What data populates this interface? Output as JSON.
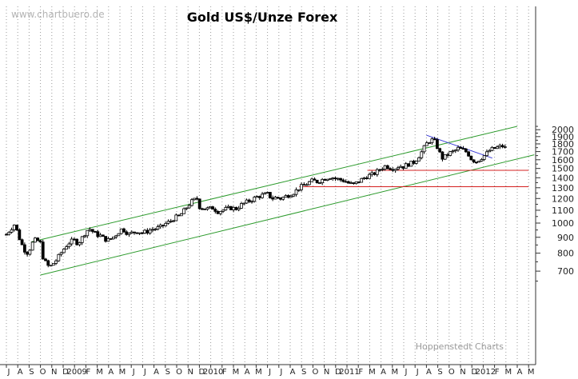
{
  "watermark": "www.chartbuero.de",
  "title": "Gold US$/Unze Forex",
  "footer": "Hoppenstedt Charts",
  "chart_data": {
    "type": "candlestick",
    "title": "Gold US$/Unze Forex",
    "y_scale": "log",
    "ylim": [
      650,
      2100
    ],
    "y_ticks": [
      700,
      800,
      900,
      1000,
      1100,
      1200,
      1300,
      1400,
      1500,
      1600,
      1700,
      1800,
      1900,
      2000
    ],
    "x_ticks": [
      {
        "label": "J",
        "month": 0
      },
      {
        "label": "A",
        "month": 1
      },
      {
        "label": "S",
        "month": 2
      },
      {
        "label": "O",
        "month": 3
      },
      {
        "label": "N",
        "month": 4
      },
      {
        "label": "D",
        "month": 5
      },
      {
        "label": "2009",
        "month": 6
      },
      {
        "label": "F",
        "month": 7
      },
      {
        "label": "M",
        "month": 8
      },
      {
        "label": "A",
        "month": 9
      },
      {
        "label": "M",
        "month": 10
      },
      {
        "label": "J",
        "month": 11
      },
      {
        "label": "J",
        "month": 12
      },
      {
        "label": "A",
        "month": 13
      },
      {
        "label": "S",
        "month": 14
      },
      {
        "label": "O",
        "month": 15
      },
      {
        "label": "N",
        "month": 16
      },
      {
        "label": "D",
        "month": 17
      },
      {
        "label": "2010",
        "month": 18
      },
      {
        "label": "F",
        "month": 19
      },
      {
        "label": "M",
        "month": 20
      },
      {
        "label": "A",
        "month": 21
      },
      {
        "label": "M",
        "month": 22
      },
      {
        "label": "J",
        "month": 23
      },
      {
        "label": "J",
        "month": 24
      },
      {
        "label": "A",
        "month": 25
      },
      {
        "label": "S",
        "month": 26
      },
      {
        "label": "O",
        "month": 27
      },
      {
        "label": "N",
        "month": 28
      },
      {
        "label": "D",
        "month": 29
      },
      {
        "label": "2011",
        "month": 30
      },
      {
        "label": "F",
        "month": 31
      },
      {
        "label": "M",
        "month": 32
      },
      {
        "label": "A",
        "month": 33
      },
      {
        "label": "M",
        "month": 34
      },
      {
        "label": "J",
        "month": 35
      },
      {
        "label": "J",
        "month": 36
      },
      {
        "label": "A",
        "month": 37
      },
      {
        "label": "S",
        "month": 38
      },
      {
        "label": "O",
        "month": 39
      },
      {
        "label": "N",
        "month": 40
      },
      {
        "label": "D",
        "month": 41
      },
      {
        "label": "2012",
        "month": 42
      },
      {
        "label": "F",
        "month": 43
      },
      {
        "label": "M",
        "month": 44
      },
      {
        "label": "A",
        "month": 45
      },
      {
        "label": "M",
        "month": 46
      }
    ],
    "price_path": [
      [
        0.0,
        920
      ],
      [
        0.4,
        960
      ],
      [
        0.7,
        990
      ],
      [
        1.0,
        930
      ],
      [
        1.2,
        880
      ],
      [
        1.5,
        830
      ],
      [
        1.8,
        800
      ],
      [
        2.1,
        830
      ],
      [
        2.4,
        880
      ],
      [
        2.7,
        880
      ],
      [
        3.0,
        860
      ],
      [
        3.2,
        780
      ],
      [
        3.5,
        740
      ],
      [
        3.8,
        720
      ],
      [
        4.1,
        740
      ],
      [
        4.4,
        760
      ],
      [
        4.8,
        800
      ],
      [
        5.2,
        840
      ],
      [
        5.6,
        870
      ],
      [
        6.0,
        880
      ],
      [
        6.3,
        860
      ],
      [
        6.7,
        900
      ],
      [
        7.0,
        940
      ],
      [
        7.3,
        960
      ],
      [
        7.6,
        940
      ],
      [
        7.9,
        920
      ],
      [
        8.3,
        910
      ],
      [
        8.6,
        890
      ],
      [
        9.0,
        880
      ],
      [
        9.4,
        900
      ],
      [
        9.8,
        930
      ],
      [
        10.2,
        960
      ],
      [
        10.5,
        940
      ],
      [
        10.8,
        920
      ],
      [
        11.2,
        935
      ],
      [
        11.6,
        940
      ],
      [
        12.0,
        930
      ],
      [
        12.4,
        940
      ],
      [
        12.8,
        955
      ],
      [
        13.2,
        960
      ],
      [
        13.6,
        970
      ],
      [
        14.0,
        995
      ],
      [
        14.4,
        1010
      ],
      [
        14.8,
        1040
      ],
      [
        15.2,
        1050
      ],
      [
        15.6,
        1090
      ],
      [
        16.0,
        1140
      ],
      [
        16.4,
        1180
      ],
      [
        16.8,
        1200
      ],
      [
        17.0,
        1130
      ],
      [
        17.4,
        1115
      ],
      [
        17.8,
        1110
      ],
      [
        18.2,
        1120
      ],
      [
        18.6,
        1090
      ],
      [
        19.0,
        1100
      ],
      [
        19.4,
        1110
      ],
      [
        19.8,
        1120
      ],
      [
        20.2,
        1110
      ],
      [
        20.6,
        1140
      ],
      [
        21.0,
        1160
      ],
      [
        21.4,
        1180
      ],
      [
        21.8,
        1200
      ],
      [
        22.2,
        1220
      ],
      [
        22.6,
        1230
      ],
      [
        23.0,
        1240
      ],
      [
        23.4,
        1200
      ],
      [
        23.8,
        1210
      ],
      [
        24.2,
        1200
      ],
      [
        24.6,
        1220
      ],
      [
        25.0,
        1240
      ],
      [
        25.4,
        1260
      ],
      [
        25.8,
        1300
      ],
      [
        26.2,
        1320
      ],
      [
        26.6,
        1350
      ],
      [
        27.0,
        1370
      ],
      [
        27.4,
        1360
      ],
      [
        27.8,
        1380
      ],
      [
        28.2,
        1400
      ],
      [
        28.6,
        1410
      ],
      [
        29.0,
        1390
      ],
      [
        29.4,
        1380
      ],
      [
        29.8,
        1370
      ],
      [
        30.2,
        1340
      ],
      [
        30.6,
        1330
      ],
      [
        31.0,
        1360
      ],
      [
        31.4,
        1390
      ],
      [
        31.8,
        1420
      ],
      [
        32.2,
        1430
      ],
      [
        32.6,
        1460
      ],
      [
        33.0,
        1500
      ],
      [
        33.4,
        1530
      ],
      [
        33.8,
        1510
      ],
      [
        34.2,
        1500
      ],
      [
        34.6,
        1530
      ],
      [
        35.0,
        1520
      ],
      [
        35.4,
        1550
      ],
      [
        35.8,
        1560
      ],
      [
        36.2,
        1620
      ],
      [
        36.6,
        1700
      ],
      [
        37.0,
        1800
      ],
      [
        37.4,
        1860
      ],
      [
        37.8,
        1820
      ],
      [
        38.1,
        1700
      ],
      [
        38.4,
        1620
      ],
      [
        38.7,
        1640
      ],
      [
        39.0,
        1680
      ],
      [
        39.4,
        1700
      ],
      [
        39.8,
        1740
      ],
      [
        40.2,
        1720
      ],
      [
        40.6,
        1690
      ],
      [
        41.0,
        1600
      ],
      [
        41.4,
        1580
      ],
      [
        41.8,
        1620
      ],
      [
        42.2,
        1660
      ],
      [
        42.6,
        1720
      ],
      [
        43.0,
        1740
      ],
      [
        43.4,
        1760
      ],
      [
        43.7,
        1770
      ],
      [
        44.0,
        1740
      ]
    ],
    "trend_lines": [
      {
        "color": "#2d9b2d",
        "from": [
          2.2,
          870
        ],
        "to": [
          45.0,
          2050
        ]
      },
      {
        "color": "#2d9b2d",
        "from": [
          3.0,
          680
        ],
        "to": [
          46.5,
          1660
        ]
      },
      {
        "color": "#3a3ad8",
        "from": [
          37.0,
          1920
        ],
        "to": [
          42.8,
          1620
        ]
      },
      {
        "color": "#d42020",
        "from": [
          31.8,
          1480
        ],
        "to": [
          46.0,
          1480
        ]
      },
      {
        "color": "#d42020",
        "from": [
          25.8,
          1310
        ],
        "to": [
          46.0,
          1310
        ]
      }
    ]
  }
}
